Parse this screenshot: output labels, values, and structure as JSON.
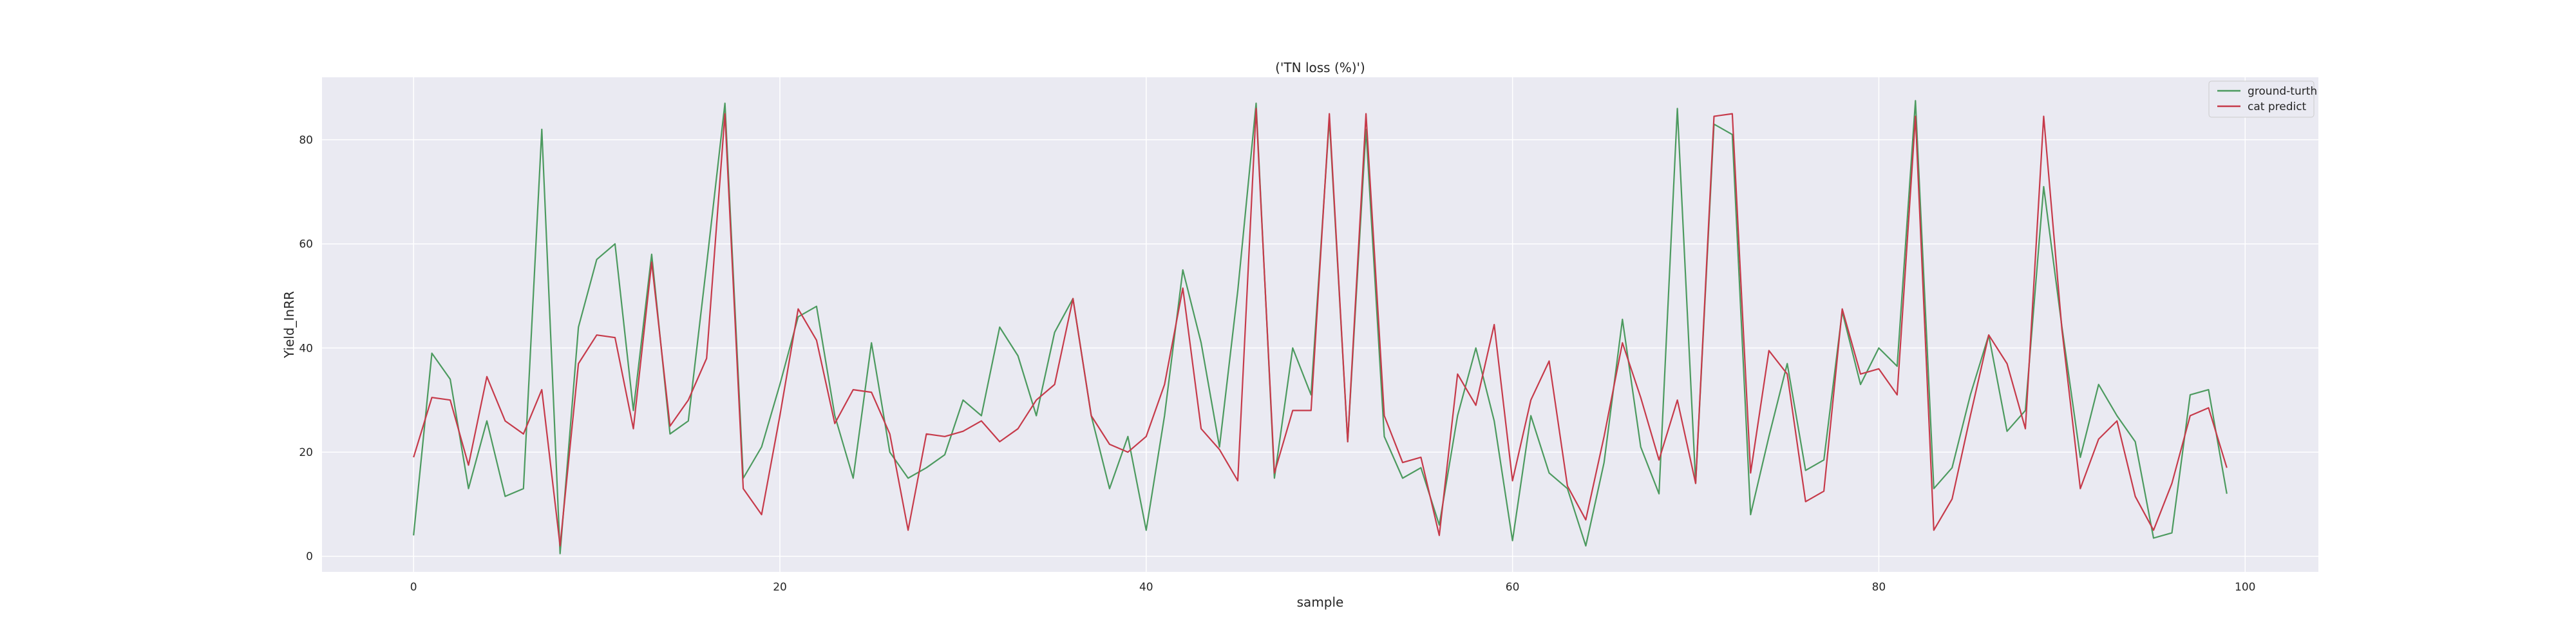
{
  "chart_data": {
    "type": "line",
    "title": "('TN loss (%)')",
    "xlabel": "sample",
    "ylabel": "Yield_InRR",
    "xlim": [
      -5,
      104
    ],
    "ylim": [
      -3,
      92
    ],
    "xticks": [
      0,
      20,
      40,
      60,
      80,
      100
    ],
    "yticks": [
      0,
      20,
      40,
      60,
      80
    ],
    "grid": true,
    "legend_position": "top-right",
    "x": [
      0,
      1,
      2,
      3,
      4,
      5,
      6,
      7,
      8,
      9,
      10,
      11,
      12,
      13,
      14,
      15,
      16,
      17,
      18,
      19,
      20,
      21,
      22,
      23,
      24,
      25,
      26,
      27,
      28,
      29,
      30,
      31,
      32,
      33,
      34,
      35,
      36,
      37,
      38,
      39,
      40,
      41,
      42,
      43,
      44,
      45,
      46,
      47,
      48,
      49,
      50,
      51,
      52,
      53,
      54,
      55,
      56,
      57,
      58,
      59,
      60,
      61,
      62,
      63,
      64,
      65,
      66,
      67,
      68,
      69,
      70,
      71,
      72,
      73,
      74,
      75,
      76,
      77,
      78,
      79,
      80,
      81,
      82,
      83,
      84,
      85,
      86,
      87,
      88,
      89,
      90,
      91,
      92,
      93,
      94,
      95,
      96,
      97,
      98,
      99
    ],
    "series": [
      {
        "name": "ground-turth",
        "color": "#4c9a5f",
        "values": [
          4,
          39,
          34,
          13,
          26,
          11.5,
          13,
          82,
          0.5,
          44,
          57,
          60,
          28,
          58,
          23.5,
          26,
          56,
          87,
          15,
          21,
          33,
          46,
          48,
          27,
          15,
          41,
          20,
          15,
          17,
          19.5,
          30,
          27,
          44,
          38.5,
          27,
          43,
          49.5,
          27,
          13,
          23,
          5,
          27,
          55,
          41,
          21,
          51,
          87,
          15,
          40,
          31,
          84,
          22,
          82,
          23,
          15,
          17,
          6,
          27,
          40,
          26,
          3,
          27,
          16,
          13,
          2,
          18,
          45.5,
          21,
          12,
          86,
          14,
          83,
          81,
          8,
          23,
          37,
          16.5,
          18.5,
          47,
          33,
          40,
          36.5,
          87.5,
          13,
          17,
          31,
          42.5,
          24,
          28,
          71,
          44,
          19,
          33,
          27,
          22,
          3.5,
          4.5,
          31,
          32,
          12
        ]
      },
      {
        "name": "cat predict",
        "color": "#c63a4a",
        "values": [
          19,
          30.5,
          30,
          17.5,
          34.5,
          26,
          23.5,
          32,
          2,
          37,
          42.5,
          42,
          24.5,
          56.5,
          25,
          30,
          38,
          85,
          13,
          8,
          27,
          47.5,
          41.5,
          25.5,
          32,
          31.5,
          23.5,
          5,
          23.5,
          23,
          24,
          26,
          22,
          24.5,
          30,
          33,
          49.5,
          27,
          21.5,
          20,
          23,
          33,
          51.5,
          24.5,
          20.5,
          14.5,
          86,
          16,
          28,
          28,
          85,
          22,
          85,
          27,
          18,
          19,
          4,
          35,
          29,
          44.5,
          14.5,
          30,
          37.5,
          13.5,
          7,
          23,
          41,
          30.5,
          18.5,
          30,
          14,
          84.5,
          85,
          16,
          39.5,
          35,
          10.5,
          12.5,
          47.5,
          35,
          36,
          31,
          84.5,
          5,
          11,
          27,
          42.5,
          37,
          24.5,
          84.5,
          43.5,
          13,
          22.5,
          26,
          11.5,
          5,
          14,
          27,
          28.5,
          17
        ]
      }
    ]
  }
}
